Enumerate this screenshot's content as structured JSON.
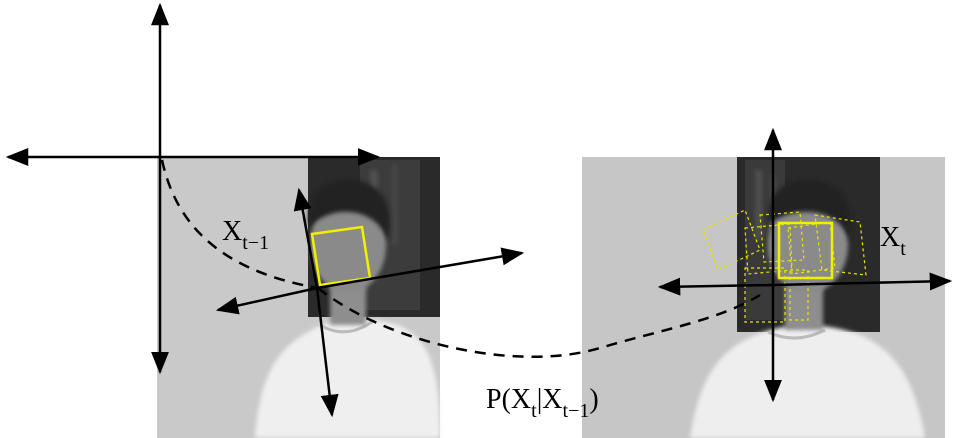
{
  "figure": {
    "panels": [
      {
        "id": "frame-prev",
        "state_label": {
          "main": "X",
          "sub": "t−1"
        },
        "photo": "grayscale video frame, person with dark hair in white t-shirt, yellow box on face"
      },
      {
        "id": "frame-current",
        "state_label": {
          "main": "X",
          "sub": "t"
        },
        "photo": "grayscale video frame, same person, yellow solid box plus dashed candidate boxes"
      }
    ],
    "transition_label": {
      "prefix": "P(X",
      "sub1": "t",
      "bar": "|X",
      "sub2": "t−1",
      "suffix": ")"
    },
    "colors": {
      "box": "#f0f000",
      "box_dashed": "#e6e600",
      "axes": "#000000",
      "photo_bg": "#c8c8c8"
    },
    "icons": [
      "coordinate-axes-icon",
      "face-bounding-box-icon",
      "dashed-trajectory-icon"
    ]
  }
}
